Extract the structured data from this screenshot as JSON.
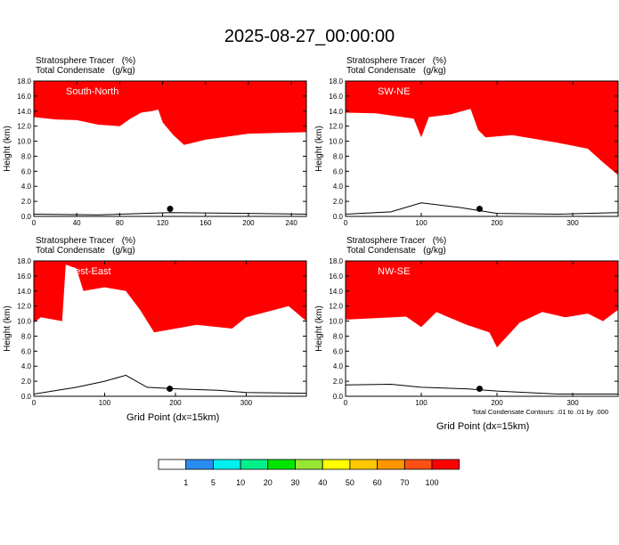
{
  "title": "2025-08-27_00:00:00",
  "xlabel": "Grid Point (dx=15km)",
  "contour_note": "Total Condensate Contours: .01 to .01 by .000",
  "colorbar": {
    "levels": [
      "1",
      "5",
      "10",
      "20",
      "30",
      "40",
      "50",
      "60",
      "70",
      "100"
    ],
    "colors": [
      "#ffffff",
      "#2b8cf0",
      "#00f0f0",
      "#00f08c",
      "#00e600",
      "#96e632",
      "#ffff00",
      "#ffc800",
      "#ff9600",
      "#ff5014",
      "#ff0000"
    ]
  },
  "panels": [
    {
      "id": "south-north",
      "header_line1": "Stratosphere Tracer   (%)",
      "header_line2": "Total Condensate   (g/kg)",
      "label": "South-North",
      "xticks": [
        0,
        40,
        80,
        120,
        160,
        200,
        240
      ],
      "xmax": 254,
      "yticks": [
        "0.0",
        "2.0",
        "4.0",
        "6.0",
        "8.0",
        "10.0",
        "12.0",
        "14.0",
        "16.0",
        "18.0"
      ],
      "ylabel": "Height (km)",
      "marker_x": 127,
      "marker_y": 1.0
    },
    {
      "id": "sw-ne",
      "header_line1": "Stratosphere Tracer   (%)",
      "header_line2": "Total Condensate   (g/kg)",
      "label": "SW-NE",
      "xticks": [
        0,
        100,
        200,
        300
      ],
      "xmax": 360,
      "yticks": [
        "0.0",
        "2.0",
        "4.0",
        "6.0",
        "8.0",
        "10.0",
        "12.0",
        "14.0",
        "16.0",
        "18.0"
      ],
      "ylabel": "Height (km)",
      "marker_x": 177,
      "marker_y": 1.0
    },
    {
      "id": "west-east",
      "header_line1": "Stratosphere Tracer   (%)",
      "header_line2": "Total Condensate   (g/kg)",
      "label": "West-East",
      "xticks": [
        0,
        100,
        200,
        300
      ],
      "xmax": 385,
      "yticks": [
        "0.0",
        "2.0",
        "4.0",
        "6.0",
        "8.0",
        "10.0",
        "12.0",
        "14.0",
        "16.0",
        "18.0"
      ],
      "ylabel": "Height (km)",
      "marker_x": 192,
      "marker_y": 1.0
    },
    {
      "id": "nw-se",
      "header_line1": "Stratosphere Tracer   (%)",
      "header_line2": "Total Condensate   (g/kg)",
      "label": "NW-SE",
      "xticks": [
        0,
        100,
        200,
        300
      ],
      "xmax": 360,
      "yticks": [
        "0.0",
        "2.0",
        "4.0",
        "6.0",
        "8.0",
        "10.0",
        "12.0",
        "14.0",
        "16.0",
        "18.0"
      ],
      "ylabel": "Height (km)",
      "marker_x": 177,
      "marker_y": 1.0
    }
  ],
  "chart_data": {
    "type": "heatmap",
    "title": "2025-08-27_00:00:00",
    "xlabel": "Grid Point (dx=15km)",
    "ylabel": "Height (km)",
    "ylim": [
      0,
      18
    ],
    "variables": [
      "Stratosphere Tracer (%)",
      "Total Condensate (g/kg)"
    ],
    "contour_levels": "Total Condensate Contours: .01 to .01 by .000",
    "color_levels": [
      1,
      5,
      10,
      20,
      30,
      40,
      50,
      60,
      70,
      100
    ],
    "cross_sections": [
      {
        "name": "South-North",
        "xlim": [
          0,
          254
        ],
        "tracer_base_km": [
          [
            0,
            13.2
          ],
          [
            20,
            12.9
          ],
          [
            40,
            12.8
          ],
          [
            60,
            12.2
          ],
          [
            80,
            12.0
          ],
          [
            90,
            13.0
          ],
          [
            100,
            13.8
          ],
          [
            110,
            14.0
          ],
          [
            116,
            14.2
          ],
          [
            120,
            12.5
          ],
          [
            130,
            10.8
          ],
          [
            140,
            9.5
          ],
          [
            160,
            10.2
          ],
          [
            200,
            11.0
          ],
          [
            254,
            11.2
          ]
        ],
        "terrain_km": [
          [
            0,
            0.3
          ],
          [
            60,
            0.2
          ],
          [
            127,
            0.5
          ],
          [
            200,
            0.4
          ],
          [
            254,
            0.3
          ]
        ]
      },
      {
        "name": "SW-NE",
        "xlim": [
          0,
          360
        ],
        "tracer_base_km": [
          [
            0,
            13.8
          ],
          [
            40,
            13.7
          ],
          [
            90,
            13.0
          ],
          [
            100,
            10.5
          ],
          [
            110,
            13.2
          ],
          [
            140,
            13.6
          ],
          [
            165,
            14.3
          ],
          [
            175,
            11.5
          ],
          [
            185,
            10.5
          ],
          [
            220,
            10.8
          ],
          [
            280,
            9.8
          ],
          [
            320,
            9.0
          ],
          [
            340,
            7.2
          ],
          [
            360,
            5.5
          ]
        ],
        "terrain_km": [
          [
            0,
            0.3
          ],
          [
            60,
            0.6
          ],
          [
            100,
            1.8
          ],
          [
            150,
            1.2
          ],
          [
            200,
            0.4
          ],
          [
            280,
            0.3
          ],
          [
            360,
            0.5
          ]
        ]
      },
      {
        "name": "West-East",
        "xlim": [
          0,
          385
        ],
        "tracer_base_km": [
          [
            0,
            9.8
          ],
          [
            10,
            10.5
          ],
          [
            40,
            10.0
          ],
          [
            45,
            17.5
          ],
          [
            60,
            17.0
          ],
          [
            70,
            14.0
          ],
          [
            100,
            14.5
          ],
          [
            130,
            14.0
          ],
          [
            150,
            11.5
          ],
          [
            170,
            8.5
          ],
          [
            200,
            9.0
          ],
          [
            230,
            9.5
          ],
          [
            280,
            9.0
          ],
          [
            300,
            10.5
          ],
          [
            320,
            11.0
          ],
          [
            360,
            12.0
          ],
          [
            385,
            10.0
          ]
        ],
        "terrain_km": [
          [
            0,
            0.3
          ],
          [
            60,
            1.2
          ],
          [
            100,
            2.0
          ],
          [
            130,
            2.8
          ],
          [
            160,
            1.2
          ],
          [
            200,
            1.0
          ],
          [
            260,
            0.8
          ],
          [
            300,
            0.5
          ],
          [
            385,
            0.4
          ]
        ]
      },
      {
        "name": "NW-SE",
        "xlim": [
          0,
          360
        ],
        "tracer_base_km": [
          [
            0,
            10.2
          ],
          [
            40,
            10.4
          ],
          [
            80,
            10.6
          ],
          [
            100,
            9.2
          ],
          [
            120,
            11.2
          ],
          [
            160,
            9.5
          ],
          [
            190,
            8.5
          ],
          [
            200,
            6.5
          ],
          [
            230,
            9.8
          ],
          [
            260,
            11.2
          ],
          [
            290,
            10.5
          ],
          [
            320,
            11.0
          ],
          [
            340,
            10.0
          ],
          [
            360,
            11.5
          ]
        ],
        "terrain_km": [
          [
            0,
            1.5
          ],
          [
            60,
            1.6
          ],
          [
            100,
            1.2
          ],
          [
            160,
            1.0
          ],
          [
            200,
            0.7
          ],
          [
            280,
            0.3
          ],
          [
            360,
            0.3
          ]
        ]
      }
    ]
  }
}
